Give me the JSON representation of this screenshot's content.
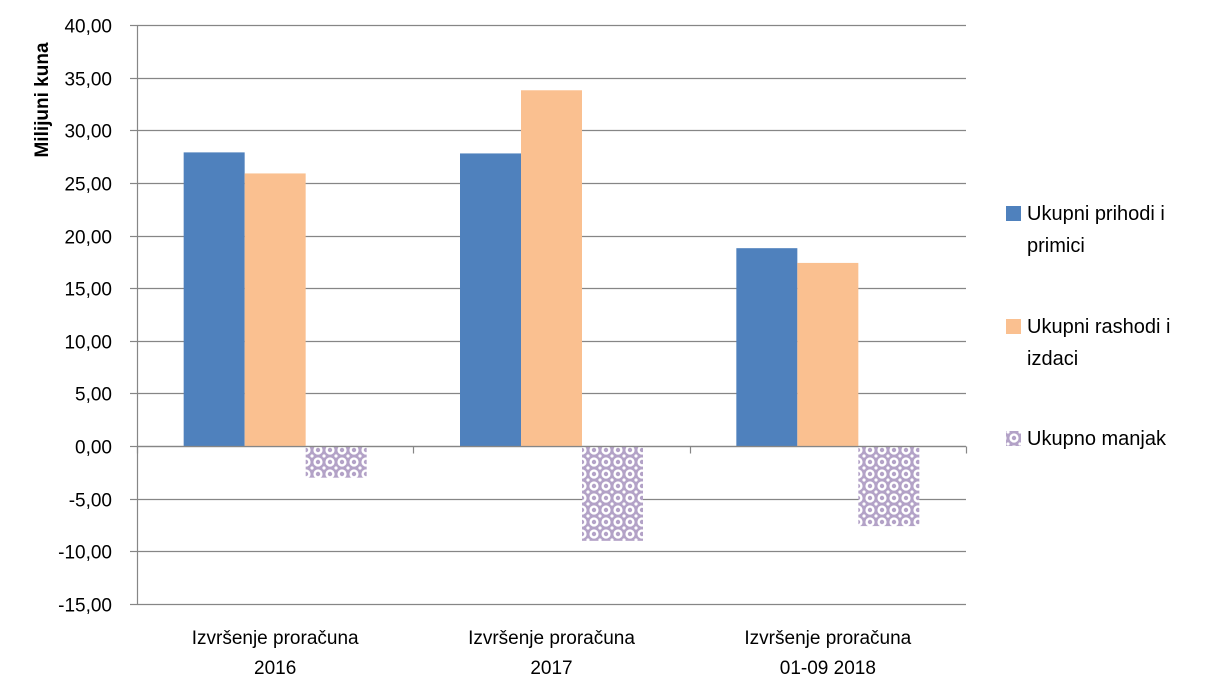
{
  "chart_data": {
    "type": "bar",
    "ylabel": "Milijuni kuna",
    "xlabel": "",
    "ylim": [
      -15,
      40
    ],
    "y_ticks": [
      40,
      35,
      30,
      25,
      20,
      15,
      10,
      5,
      0,
      -5,
      -10,
      -15
    ],
    "y_tick_labels": [
      "40,00",
      "35,00",
      "30,00",
      "25,00",
      "20,00",
      "15,00",
      "10,00",
      "5,00",
      "0,00",
      "-5,00",
      "-10,00",
      "-15,00"
    ],
    "grid": true,
    "legend_position": "right",
    "categories": [
      [
        "Izvršenje proračuna",
        "2016"
      ],
      [
        "Izvršenje proračuna",
        "2017"
      ],
      [
        "Izvršenje proračuna",
        "01-09   2018"
      ]
    ],
    "series": [
      {
        "name": [
          "Ukupni prihodi i",
          "primici"
        ],
        "values": [
          27.9,
          27.8,
          18.8
        ],
        "color": "#4f81bd",
        "pattern": "solid"
      },
      {
        "name": [
          "Ukupni rashodi i",
          "izdaci"
        ],
        "values": [
          25.9,
          33.8,
          17.4
        ],
        "color": "#fac090",
        "pattern": "solid"
      },
      {
        "name": [
          "Ukupno manjak"
        ],
        "values": [
          -3.0,
          -9.0,
          -7.6
        ],
        "color": "#b3a2c7",
        "pattern": "circles"
      }
    ]
  }
}
